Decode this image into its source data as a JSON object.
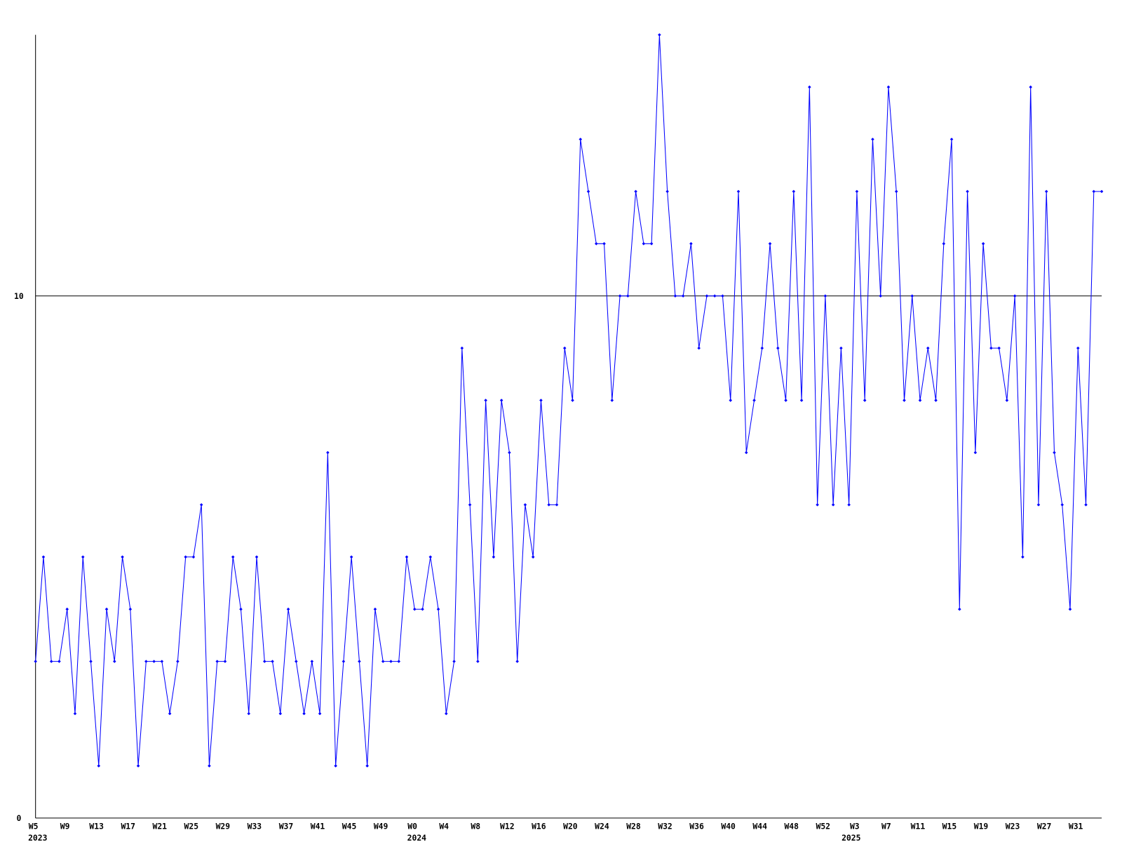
{
  "chart_data": {
    "type": "line",
    "categories": [
      "W5",
      null,
      null,
      null,
      "W9",
      null,
      null,
      null,
      "W13",
      null,
      null,
      null,
      "W17",
      null,
      null,
      null,
      "W21",
      null,
      null,
      null,
      "W25",
      null,
      null,
      null,
      "W29",
      null,
      null,
      null,
      "W33",
      null,
      null,
      null,
      "W37",
      null,
      null,
      null,
      "W41",
      null,
      null,
      null,
      "W45",
      null,
      null,
      null,
      "W49",
      null,
      null,
      null,
      "W0",
      null,
      null,
      null,
      "W4",
      null,
      null,
      null,
      "W8",
      null,
      null,
      null,
      "W12",
      null,
      null,
      null,
      "W16",
      null,
      null,
      null,
      "W20",
      null,
      null,
      null,
      "W24",
      null,
      null,
      null,
      "W28",
      null,
      null,
      null,
      "W32",
      null,
      null,
      null,
      "W36",
      null,
      null,
      null,
      "W40",
      null,
      null,
      null,
      "W44",
      null,
      null,
      null,
      "W48",
      null,
      null,
      null,
      "W52",
      null,
      null,
      null,
      "W3",
      null,
      null,
      null,
      "W7",
      null,
      null,
      null,
      "W11",
      null,
      null,
      null,
      "W15",
      null,
      null,
      null,
      "W19",
      null,
      null,
      null,
      "W23",
      null,
      null,
      null,
      "W27",
      null,
      null,
      null,
      "W31",
      null,
      null,
      null
    ],
    "year_labels": [
      "2023",
      null,
      null,
      null,
      null,
      null,
      null,
      null,
      null,
      null,
      null,
      null,
      null,
      null,
      null,
      null,
      null,
      null,
      null,
      null,
      null,
      null,
      null,
      null,
      null,
      null,
      null,
      null,
      null,
      null,
      null,
      null,
      null,
      null,
      null,
      null,
      null,
      null,
      null,
      null,
      null,
      null,
      null,
      null,
      null,
      null,
      null,
      null,
      "2024",
      null,
      null,
      null,
      null,
      null,
      null,
      null,
      null,
      null,
      null,
      null,
      null,
      null,
      null,
      null,
      null,
      null,
      null,
      null,
      null,
      null,
      null,
      null,
      null,
      null,
      null,
      null,
      null,
      null,
      null,
      null,
      null,
      null,
      null,
      null,
      null,
      null,
      null,
      null,
      null,
      null,
      null,
      null,
      null,
      null,
      null,
      null,
      null,
      null,
      null,
      null,
      null,
      null,
      null,
      "2025",
      null,
      null,
      null,
      null,
      null,
      null,
      null,
      null,
      null,
      null,
      null,
      null,
      null,
      null,
      null,
      null,
      null,
      null,
      null,
      null,
      null,
      null,
      null,
      null,
      null,
      null,
      null,
      null,
      null,
      null,
      null,
      null,
      null,
      null
    ],
    "series": [
      {
        "color": "#0000ff",
        "values": [
          3,
          5,
          3,
          3,
          4,
          2,
          5,
          3,
          1,
          4,
          3,
          5,
          4,
          1,
          3,
          3,
          3,
          2,
          3,
          5,
          5,
          6,
          1,
          3,
          3,
          5,
          4,
          2,
          5,
          3,
          3,
          2,
          4,
          3,
          2,
          3,
          2,
          7,
          1,
          3,
          5,
          3,
          1,
          4,
          3,
          3,
          3,
          5,
          4,
          4,
          5,
          4,
          2,
          3,
          9,
          6,
          3,
          8,
          5,
          8,
          7,
          3,
          6,
          5,
          8,
          6,
          6,
          9,
          8,
          13,
          12,
          11,
          11,
          8,
          10,
          10,
          12,
          11,
          11,
          15,
          12,
          10,
          10,
          11,
          9,
          10,
          10,
          10,
          8,
          12,
          7,
          8,
          9,
          11,
          9,
          8,
          12,
          8,
          14,
          6,
          10,
          6,
          9,
          6,
          12,
          8,
          13,
          10,
          14,
          12,
          8,
          10,
          8,
          9,
          8,
          11,
          13,
          4,
          12,
          7,
          11,
          9,
          9,
          8,
          10,
          5,
          14,
          6,
          12,
          7,
          6,
          4,
          9,
          6,
          12,
          12
        ]
      }
    ],
    "ylim": [
      0,
      15
    ],
    "yticks": [
      0,
      10
    ],
    "grid": true
  }
}
